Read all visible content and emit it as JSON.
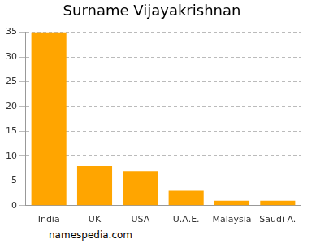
{
  "chart_data": {
    "type": "bar",
    "title": "Surname Vijayakrishnan",
    "categories": [
      "India",
      "UK",
      "USA",
      "U.A.E.",
      "Malaysia",
      "Saudi A."
    ],
    "values": [
      35,
      8,
      7,
      3,
      1,
      1
    ],
    "color": "#ffa500",
    "ylim": [
      0,
      35
    ],
    "yticks": [
      0,
      5,
      10,
      15,
      20,
      25,
      30,
      35
    ],
    "grid": true,
    "annotation": "namespedia.com"
  }
}
